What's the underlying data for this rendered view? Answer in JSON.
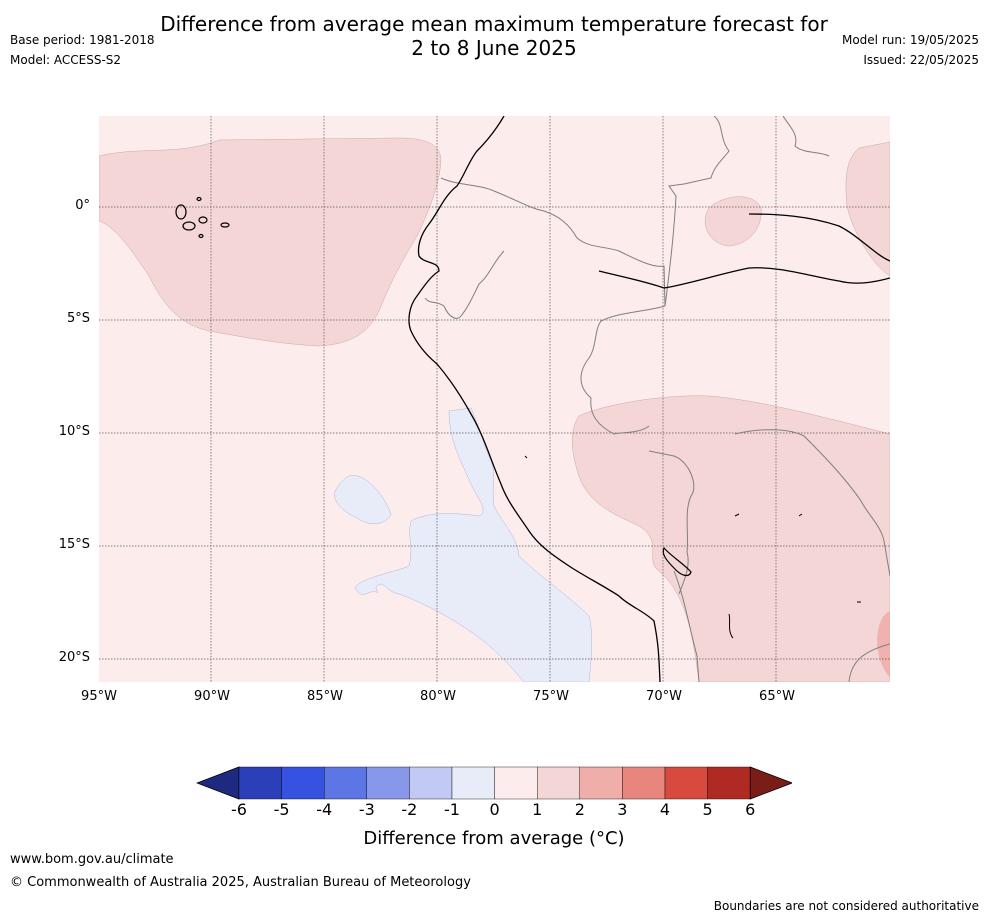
{
  "header": {
    "title_line1": "Difference from average mean maximum temperature forecast for",
    "title_line2": "2 to 8 June 2025",
    "base_period": "Base period: 1981-2018",
    "model": "Model: ACCESS-S2",
    "model_run": "Model run: 19/05/2025",
    "issued": "Issued: 22/05/2025"
  },
  "map": {
    "lat_labels": [
      "0°",
      "5°S",
      "10°S",
      "15°S",
      "20°S"
    ],
    "lon_labels": [
      "95°W",
      "90°W",
      "85°W",
      "80°W",
      "75°W",
      "70°W",
      "65°W"
    ],
    "colors": {
      "ocean_bg": "#fcecec",
      "warm_1_2": "#f5d6d6",
      "warm_2_3": "#efb2ae",
      "cool_0_1": "#e8ebf8",
      "coast": "#000000",
      "border": "#7f7f7f",
      "grid": "#555555"
    }
  },
  "colorbar": {
    "ticks": [
      "-6",
      "-5",
      "-4",
      "-3",
      "-2",
      "-1",
      "0",
      "1",
      "2",
      "3",
      "4",
      "5",
      "6"
    ],
    "colors": [
      "#1d2a80",
      "#2a3fb8",
      "#3552e0",
      "#5d76e6",
      "#8797ea",
      "#c2c9f4",
      "#e8ebf8",
      "#fcecec",
      "#f5d6d6",
      "#efaeaa",
      "#e8867e",
      "#d94a3e",
      "#ae2a22",
      "#7a1d18"
    ],
    "label": "Difference from average (°C)"
  },
  "footer": {
    "website": "www.bom.gov.au/climate",
    "copyright": "© Commonwealth of Australia 2025, Australian Bureau of Meteorology",
    "disclaimer": "Boundaries are not considered authoritative"
  }
}
